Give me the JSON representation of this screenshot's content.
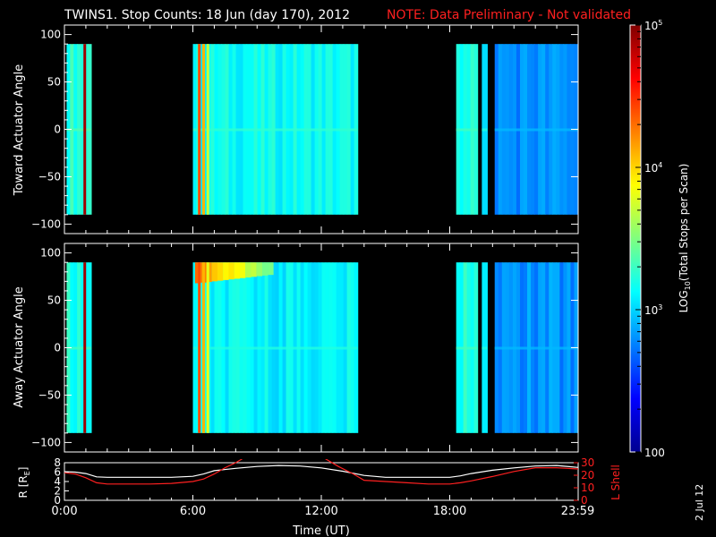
{
  "title": {
    "main": "TWINS1. Stop Counts: 18 Jun (day 170), 2012",
    "note": "NOTE: Data Preliminary - Not validated",
    "note_color": "#ff2020"
  },
  "side_date": "2 Jul 12",
  "chart_data": [
    {
      "type": "heatmap",
      "name": "toward-panel",
      "ylabel": "Toward Actuator Angle",
      "ylim": [
        -110,
        110
      ],
      "y_ticks": [
        -100,
        -50,
        0,
        50,
        100
      ],
      "y_tick_labels": [
        "−100",
        "−50",
        "0",
        "50",
        "100"
      ],
      "x_range_hours": [
        0,
        24
      ],
      "angle_range": [
        -90,
        90
      ],
      "data_intervals_hours": [
        [
          0.1,
          1.25
        ],
        [
          6.0,
          13.7
        ],
        [
          18.3,
          19.3
        ],
        [
          19.5,
          19.75
        ],
        [
          20.1,
          23.98
        ]
      ],
      "base_log10_by_interval": [
        3.25,
        3.15,
        3.2,
        3.1,
        2.8
      ],
      "bright_bands": [
        {
          "x_hours": 0.95,
          "log10": 4.9
        },
        {
          "x_hours": 6.3,
          "log10": 4.4
        },
        {
          "x_hours": 6.5,
          "log10": 4.1
        },
        {
          "x_hours": 6.7,
          "log10": 3.7
        }
      ]
    },
    {
      "type": "heatmap",
      "name": "away-panel",
      "ylabel": "Away Actuator Angle",
      "ylim": [
        -110,
        110
      ],
      "y_ticks": [
        -100,
        -50,
        0,
        50,
        100
      ],
      "y_tick_labels": [
        "−100",
        "−50",
        "0",
        "50",
        "100"
      ],
      "x_range_hours": [
        0,
        24
      ],
      "angle_range": [
        -90,
        90
      ],
      "data_intervals_hours": [
        [
          0.1,
          1.25
        ],
        [
          6.0,
          13.7
        ],
        [
          18.3,
          19.3
        ],
        [
          19.5,
          19.75
        ],
        [
          20.1,
          23.98
        ]
      ],
      "base_log10_by_interval": [
        3.2,
        3.1,
        3.2,
        3.1,
        2.8
      ],
      "bright_bands": [
        {
          "x_hours": 0.95,
          "log10": 4.9
        },
        {
          "x_hours": 6.3,
          "log10": 4.4
        },
        {
          "x_hours": 6.5,
          "log10": 4.1
        },
        {
          "x_hours": 6.7,
          "log10": 3.8
        }
      ],
      "hot_region": {
        "x_hours": [
          6.1,
          9.5
        ],
        "angle": [
          68,
          90
        ],
        "log10": 4.3
      }
    },
    {
      "type": "line",
      "name": "orbit-panel",
      "xlabel": "Time (UT)",
      "x_tick_labels": [
        "0:00",
        "6:00",
        "12:00",
        "18:00",
        "23:59"
      ],
      "x_ticks_hours": [
        0,
        6,
        12,
        18,
        23.98
      ],
      "x_range_hours": [
        0,
        24
      ],
      "left_ylabel": "R [R",
      "left_ylabel_sub": "E",
      "left_ylabel_end": "]",
      "left_ylim": [
        0,
        8
      ],
      "left_ticks": [
        "0",
        "2",
        "4",
        "6",
        "8"
      ],
      "right_ylabel": "L Shell",
      "right_ylim": [
        0,
        30
      ],
      "right_ticks": [
        "0",
        "10",
        "20",
        "30"
      ],
      "series": [
        {
          "axis": "left",
          "color": "#ffffff",
          "x": [
            0,
            0.5,
            1,
            1.5,
            2,
            3,
            4,
            5,
            6,
            6.5,
            7,
            8,
            9,
            10,
            11,
            12,
            13,
            14,
            15,
            16,
            17,
            18,
            18.5,
            19,
            20,
            21,
            22,
            23,
            24
          ],
          "y": [
            6.1,
            6.0,
            5.7,
            5.0,
            4.9,
            4.9,
            4.9,
            4.9,
            5.1,
            5.6,
            6.3,
            6.8,
            7.2,
            7.4,
            7.3,
            6.9,
            6.2,
            5.3,
            4.9,
            4.9,
            4.9,
            4.9,
            5.2,
            5.7,
            6.4,
            6.9,
            7.3,
            7.4,
            7.0
          ]
        },
        {
          "axis": "right",
          "color": "#ff2020",
          "x": [
            0,
            0.5,
            1,
            1.5,
            2,
            3,
            4,
            5,
            6,
            6.5,
            7,
            7.5,
            8,
            8.3,
            8.6,
            11.8,
            12.2,
            12.8,
            13.5,
            14,
            15,
            16,
            17,
            18,
            18.5,
            19,
            20,
            21,
            22,
            23,
            24
          ],
          "y": [
            22,
            21,
            18,
            14,
            13,
            13,
            13,
            13.5,
            15,
            17,
            21,
            26,
            30,
            33,
            40,
            40,
            33,
            27,
            21,
            16,
            15,
            14,
            13,
            13,
            14,
            15.5,
            19,
            23,
            26,
            26,
            25
          ]
        }
      ]
    }
  ],
  "colorbar": {
    "label": "LOG",
    "label_sub": "10",
    "label_end": "(Total Stops per Scan)",
    "range_log10": [
      2,
      5
    ],
    "ticks": [
      {
        "log10": 5,
        "base": "10",
        "exp": "5"
      },
      {
        "log10": 4,
        "base": "10",
        "exp": "4"
      },
      {
        "log10": 3,
        "base": "10",
        "exp": "3"
      },
      {
        "log10": 2,
        "base": "100",
        "exp": ""
      }
    ]
  }
}
